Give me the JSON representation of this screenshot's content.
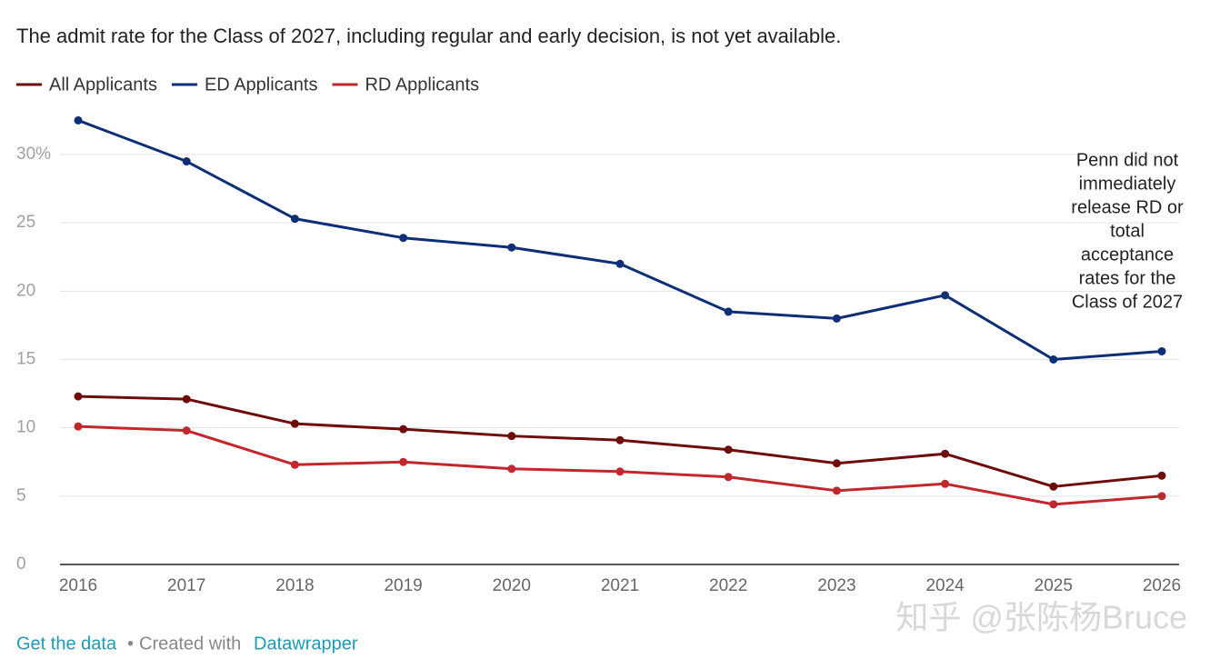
{
  "chart_data": {
    "type": "line",
    "title": "The admit rate for the Class of 2027, including regular and early decision, is not yet available.",
    "categories": [
      "2016",
      "2017",
      "2018",
      "2019",
      "2020",
      "2021",
      "2022",
      "2023",
      "2024",
      "2025",
      "2026"
    ],
    "series": [
      {
        "name": "All Applicants",
        "color": "#6e0c0c",
        "values": [
          12.3,
          12.1,
          10.3,
          9.9,
          9.4,
          9.1,
          8.4,
          7.4,
          8.1,
          5.7,
          6.5
        ]
      },
      {
        "name": "ED Applicants",
        "color": "#0e2e77",
        "values": [
          32.5,
          29.5,
          25.3,
          23.9,
          23.2,
          22.0,
          18.5,
          18.0,
          19.7,
          15.0,
          15.6
        ]
      },
      {
        "name": "RD Applicants",
        "color": "#c0282d",
        "values": [
          10.1,
          9.8,
          7.3,
          7.5,
          7.0,
          6.8,
          6.4,
          5.4,
          5.9,
          4.4,
          5.0
        ]
      }
    ],
    "ylim": [
      0,
      30
    ],
    "yticks": [
      0,
      5,
      10,
      15,
      20,
      25,
      {
        "value": 30,
        "label": "30%"
      }
    ],
    "grid": true,
    "legend": "top-left",
    "annotation": [
      "Penn did not",
      "immediately",
      "release RD or",
      "total",
      "acceptance",
      "rates for the",
      "Class of 2027"
    ]
  },
  "footer": {
    "data_link": "Get the data",
    "separator": "•",
    "created": "Created with",
    "tool_link": "Datawrapper"
  },
  "watermark": "知乎 @张陈杨Bruce"
}
